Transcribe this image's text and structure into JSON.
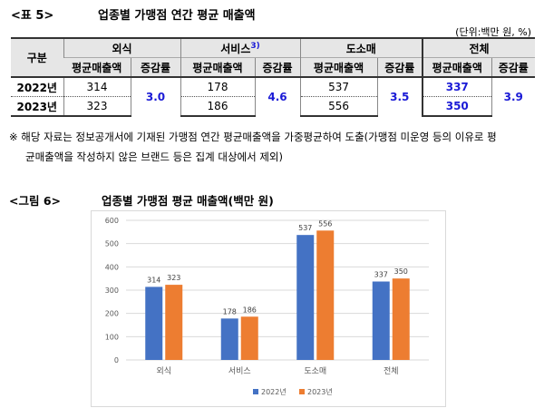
{
  "table5": {
    "label": "<표 5>",
    "title": "업종별 가맹점 연간 평균 매출액",
    "unit": "(단위:백만 원, %)",
    "corner": "구분",
    "groups": [
      "외식",
      "서비스",
      "도소매",
      "전체"
    ],
    "service_sup": "3)",
    "col_avg": "평균매출액",
    "col_rate": "증감률",
    "rows": [
      {
        "year": "2022년",
        "values": [
          "314",
          "178",
          "537",
          "337"
        ]
      },
      {
        "year": "2023년",
        "values": [
          "323",
          "186",
          "556",
          "350"
        ]
      }
    ],
    "rates": [
      "3.0",
      "4.6",
      "3.5",
      "3.9"
    ]
  },
  "note": {
    "line1": "※ 해당 자료는 정보공개서에 기재된 가맹점 연간 평균매출액을 가중평균하여 도출(가맹점 미운영 등의 이유로 평",
    "line2": "균매출액을 작성하지 않은 브랜드 등은 집계 대상에서 제외)"
  },
  "figure6": {
    "label": "<그림 6>",
    "title": "업종별 가맹점 평균 매출액(백만 원)"
  },
  "chart_data": {
    "type": "bar",
    "categories": [
      "외식",
      "서비스",
      "도소매",
      "전체"
    ],
    "series": [
      {
        "name": "2022년",
        "values": [
          314,
          178,
          537,
          337
        ],
        "color": "#4472c4"
      },
      {
        "name": "2023년",
        "values": [
          323,
          186,
          556,
          350
        ],
        "color": "#ed7d31"
      }
    ],
    "ylim": [
      0,
      600
    ],
    "yticks": [
      0,
      100,
      200,
      300,
      400,
      500,
      600
    ],
    "grid": true,
    "legend": "bottom"
  }
}
